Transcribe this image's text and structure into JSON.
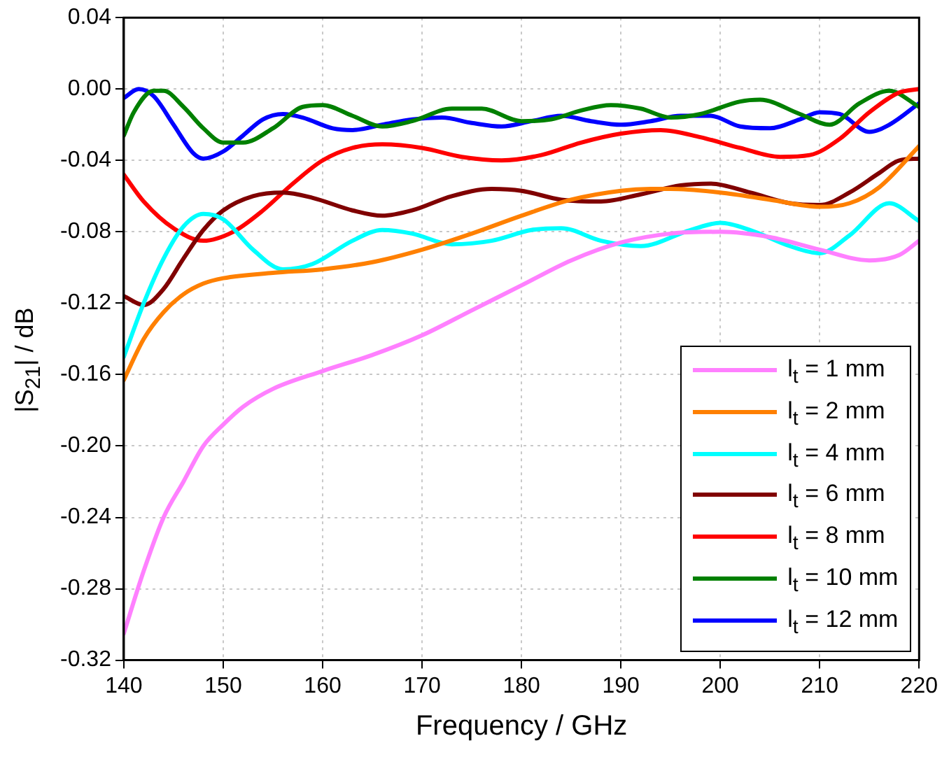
{
  "chart_data": {
    "type": "line",
    "xlabel": "Frequency / GHz",
    "ylabel": "|S$_{21}$| / dB",
    "xlim": [
      140,
      220
    ],
    "xticks": [
      140,
      150,
      160,
      170,
      180,
      190,
      200,
      210,
      220
    ],
    "ylim": [
      -0.32,
      0.04
    ],
    "yticks": [
      {
        "value": -0.32,
        "label": "-0.32"
      },
      {
        "value": -0.28,
        "label": "-0.28"
      },
      {
        "value": -0.24,
        "label": "-0.24"
      },
      {
        "value": -0.2,
        "label": "-0.20"
      },
      {
        "value": -0.16,
        "label": "-0.16"
      },
      {
        "value": -0.12,
        "label": "-0.12"
      },
      {
        "value": -0.08,
        "label": "-0.08"
      },
      {
        "value": -0.04,
        "label": "-0.04"
      },
      {
        "value": 0,
        "label": "0.00"
      },
      {
        "value": 0.04,
        "label": "0.04"
      }
    ],
    "grid": true,
    "legend": "bottom right",
    "marker": "none",
    "line_style": "solid",
    "series": [
      {
        "name": "l$_{t}$ = 1 mm",
        "color": "#ff80ff",
        "x": [
          140,
          142,
          144,
          146,
          148,
          150,
          152,
          155,
          160,
          165,
          170,
          175,
          180,
          185,
          190,
          195,
          200,
          205,
          210,
          215,
          218,
          220
        ],
        "values": [
          -0.305,
          -0.27,
          -0.24,
          -0.22,
          -0.2,
          -0.188,
          -0.178,
          -0.168,
          -0.158,
          -0.149,
          -0.138,
          -0.124,
          -0.11,
          -0.096,
          -0.086,
          -0.081,
          -0.08,
          -0.083,
          -0.09,
          -0.096,
          -0.093,
          -0.085
        ]
      },
      {
        "name": "l$_{t}$ = 2 mm",
        "color": "#ff8000",
        "x": [
          140,
          142,
          144,
          146,
          148,
          150,
          155,
          160,
          165,
          170,
          175,
          180,
          185,
          190,
          193,
          195,
          200,
          205,
          210,
          213,
          216,
          220
        ],
        "values": [
          -0.163,
          -0.14,
          -0.125,
          -0.115,
          -0.109,
          -0.106,
          -0.103,
          -0.101,
          -0.097,
          -0.09,
          -0.081,
          -0.071,
          -0.062,
          -0.057,
          -0.056,
          -0.056,
          -0.058,
          -0.062,
          -0.066,
          -0.064,
          -0.055,
          -0.032
        ]
      },
      {
        "name": "l$_{t}$ = 4 mm",
        "color": "#00ffff",
        "x": [
          140,
          142,
          144,
          146,
          148,
          150,
          153,
          156,
          159,
          163,
          166,
          169,
          173,
          177,
          181,
          184,
          188,
          192,
          197,
          200,
          203,
          207,
          210,
          213,
          217,
          220
        ],
        "values": [
          -0.15,
          -0.12,
          -0.095,
          -0.077,
          -0.07,
          -0.073,
          -0.09,
          -0.101,
          -0.098,
          -0.085,
          -0.079,
          -0.081,
          -0.087,
          -0.085,
          -0.079,
          -0.078,
          -0.085,
          -0.088,
          -0.079,
          -0.075,
          -0.079,
          -0.088,
          -0.092,
          -0.082,
          -0.064,
          -0.074
        ]
      },
      {
        "name": "l$_{t}$ = 6 mm",
        "color": "#800000",
        "x": [
          140,
          142,
          144,
          146,
          148,
          150,
          153,
          156,
          159,
          163,
          166,
          169,
          173,
          177,
          180,
          184,
          188,
          192,
          196,
          199,
          203,
          207,
          210,
          213,
          216,
          218,
          220
        ],
        "values": [
          -0.116,
          -0.121,
          -0.112,
          -0.095,
          -0.079,
          -0.068,
          -0.06,
          -0.058,
          -0.061,
          -0.068,
          -0.071,
          -0.068,
          -0.06,
          -0.056,
          -0.057,
          -0.062,
          -0.063,
          -0.059,
          -0.054,
          -0.053,
          -0.058,
          -0.064,
          -0.065,
          -0.058,
          -0.047,
          -0.04,
          -0.039
        ]
      },
      {
        "name": "l$_{t}$ = 8 mm",
        "color": "#ff0000",
        "x": [
          140,
          142,
          145,
          148,
          151,
          154,
          157,
          160,
          163,
          166,
          170,
          174,
          178,
          182,
          186,
          190,
          194,
          198,
          202,
          206,
          209,
          212,
          215,
          218,
          220
        ],
        "values": [
          -0.048,
          -0.063,
          -0.078,
          -0.085,
          -0.08,
          -0.068,
          -0.053,
          -0.04,
          -0.033,
          -0.031,
          -0.033,
          -0.038,
          -0.04,
          -0.037,
          -0.03,
          -0.025,
          -0.023,
          -0.027,
          -0.033,
          -0.038,
          -0.037,
          -0.028,
          -0.013,
          -0.002,
          0
        ]
      },
      {
        "name": "l$_{t}$ = 10 mm",
        "color": "#008000",
        "x": [
          140,
          141,
          143,
          144,
          146,
          148,
          150,
          152,
          155,
          158,
          160,
          163,
          166,
          169,
          173,
          176,
          180,
          183,
          186,
          189,
          192,
          195,
          198,
          202,
          204,
          208,
          211,
          214,
          217,
          220
        ],
        "values": [
          -0.026,
          -0.013,
          -0.001,
          -0.001,
          -0.01,
          -0.022,
          -0.03,
          -0.03,
          -0.022,
          -0.01,
          -0.009,
          -0.015,
          -0.021,
          -0.018,
          -0.011,
          -0.011,
          -0.018,
          -0.017,
          -0.012,
          -0.009,
          -0.011,
          -0.016,
          -0.014,
          -0.007,
          -0.006,
          -0.014,
          -0.02,
          -0.008,
          -0.001,
          -0.01
        ]
      },
      {
        "name": "l$_{t}$ = 12 mm",
        "color": "#0000ff",
        "x": [
          140,
          141.5,
          143,
          145,
          147,
          148,
          150,
          152,
          154,
          156,
          158,
          161,
          163,
          166,
          169,
          172,
          175,
          178,
          181,
          184,
          187,
          190,
          193,
          196,
          199,
          202,
          205,
          208,
          210,
          212,
          215,
          217,
          220
        ],
        "values": [
          -0.005,
          0,
          -0.004,
          -0.02,
          -0.036,
          -0.039,
          -0.035,
          -0.026,
          -0.017,
          -0.014,
          -0.016,
          -0.022,
          -0.023,
          -0.02,
          -0.017,
          -0.016,
          -0.019,
          -0.021,
          -0.018,
          -0.015,
          -0.018,
          -0.02,
          -0.018,
          -0.015,
          -0.015,
          -0.021,
          -0.022,
          -0.017,
          -0.013,
          -0.014,
          -0.024,
          -0.02,
          -0.008
        ]
      }
    ]
  }
}
